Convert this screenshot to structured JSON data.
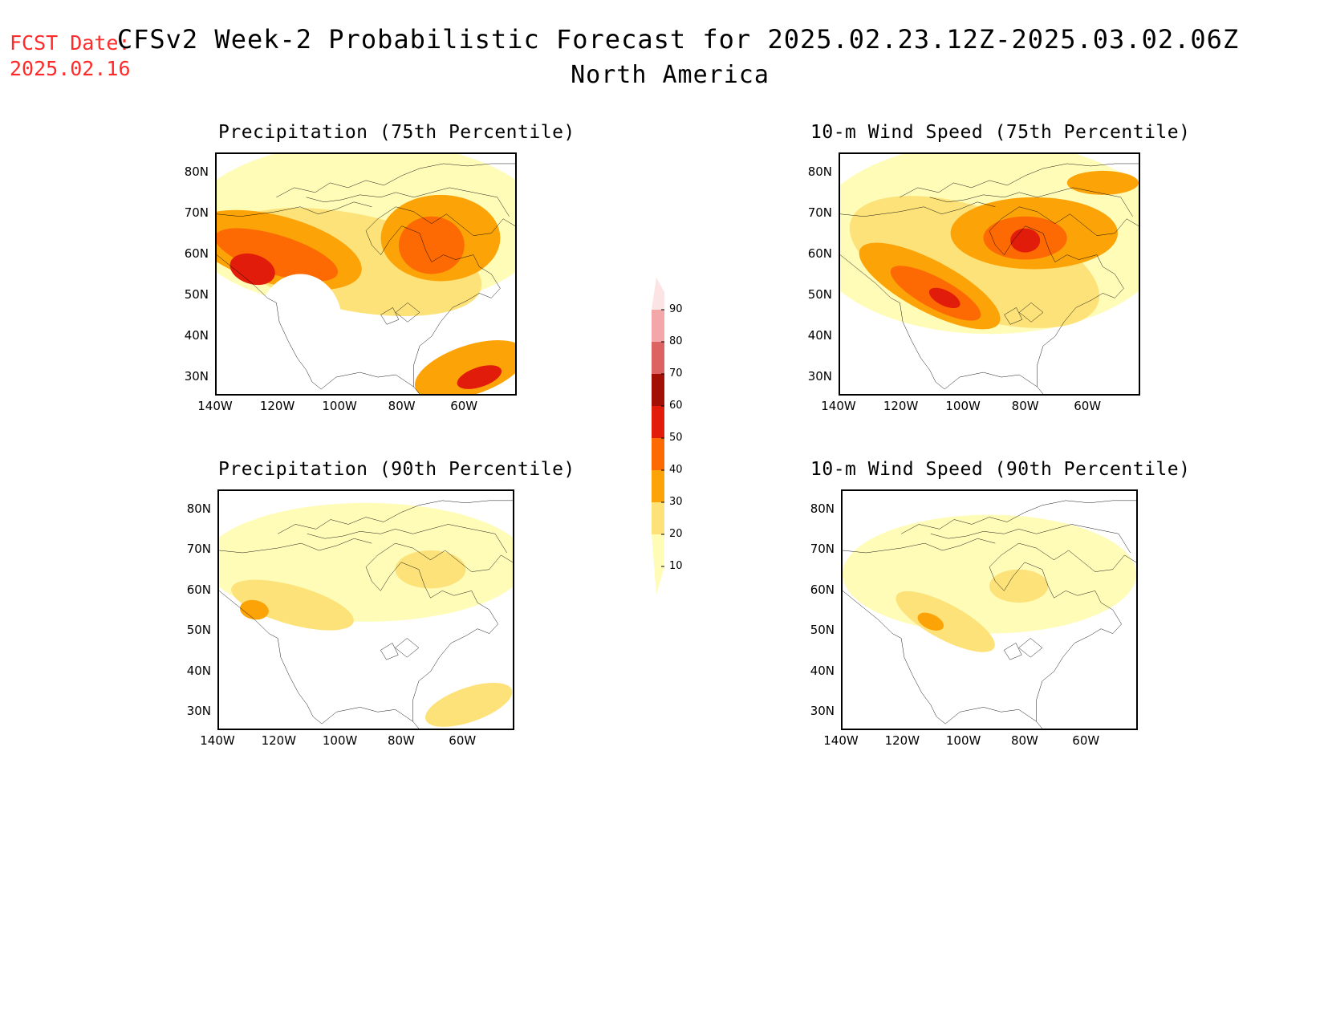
{
  "header": {
    "fcst_label": "FCST Date:",
    "fcst_date": "2025.02.16",
    "title": "CFSv2 Week-2 Probabilistic Forecast for 2025.02.23.12Z-2025.03.02.06Z",
    "subtitle": "North America"
  },
  "axes": {
    "lat_ticks": [
      "80N",
      "70N",
      "60N",
      "50N",
      "40N",
      "30N"
    ],
    "lon_ticks": [
      "140W",
      "120W",
      "100W",
      "80W",
      "60W"
    ]
  },
  "panels": [
    {
      "id": "precip-75",
      "title": "Precipitation (75th Percentile)",
      "intensity": "high",
      "variable": "precipitation"
    },
    {
      "id": "wind-75",
      "title": "10-m Wind Speed (75th Percentile)",
      "intensity": "high",
      "variable": "wind"
    },
    {
      "id": "precip-90",
      "title": "Precipitation (90th Percentile)",
      "intensity": "low",
      "variable": "precipitation"
    },
    {
      "id": "wind-90",
      "title": "10-m Wind Speed (90th Percentile)",
      "intensity": "low",
      "variable": "wind"
    }
  ],
  "colorbar": {
    "levels": [
      "10",
      "20",
      "30",
      "40",
      "50",
      "60",
      "70",
      "80",
      "90"
    ],
    "colors": [
      "#fffcb8",
      "#fde27a",
      "#fca307",
      "#fd6a04",
      "#e21c0a",
      "#a30f05",
      "#dd6262",
      "#f3a7a9",
      "#fde4e4"
    ]
  }
}
